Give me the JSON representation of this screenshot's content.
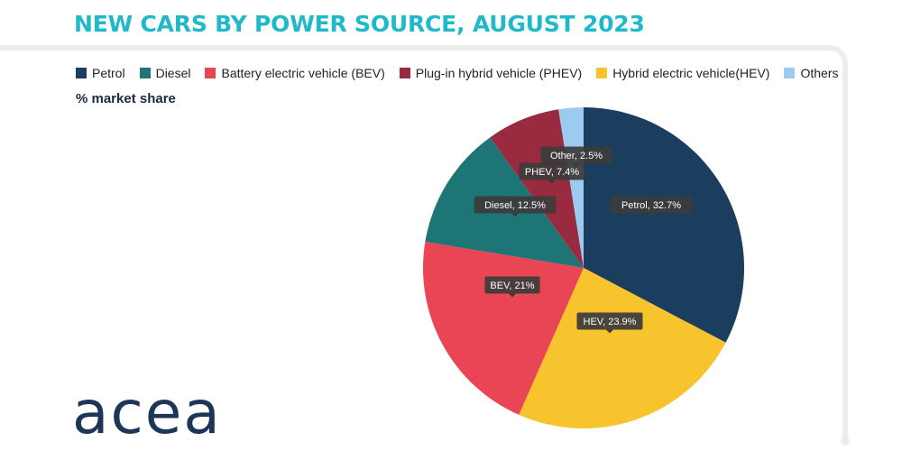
{
  "title": "NEW CARS BY POWER SOURCE, AUGUST 2023",
  "subtitle": "% market share",
  "logo_text": "acea",
  "legend": [
    {
      "label": "Petrol",
      "color": "#1b3d5e"
    },
    {
      "label": "Diesel",
      "color": "#1e7575"
    },
    {
      "label": "Battery electric vehicle (BEV)",
      "color": "#ea4555"
    },
    {
      "label": "Plug-in hybrid vehicle (PHEV)",
      "color": "#9a2a40"
    },
    {
      "label": "Hybrid electric vehicle(HEV)",
      "color": "#f8c42d"
    },
    {
      "label": "Others",
      "color": "#9ccbf0"
    }
  ],
  "chart_data": {
    "type": "pie",
    "title": "NEW CARS BY POWER SOURCE, AUGUST 2023",
    "subtitle": "% market share",
    "slices": [
      {
        "name": "Petrol",
        "value": 32.7,
        "label": "Petrol, 32.7%",
        "color": "#1b3d5e"
      },
      {
        "name": "HEV",
        "value": 23.9,
        "label": "HEV, 23.9%",
        "color": "#f8c42d"
      },
      {
        "name": "BEV",
        "value": 21,
        "label": "BEV, 21%",
        "color": "#ea4555"
      },
      {
        "name": "Diesel",
        "value": 12.5,
        "label": "Diesel, 12.5%",
        "color": "#1e7575"
      },
      {
        "name": "PHEV",
        "value": 7.4,
        "label": "PHEV, 7.4%",
        "color": "#9a2a40"
      },
      {
        "name": "Other",
        "value": 2.5,
        "label": "Other, 2.5%",
        "color": "#9ccbf0"
      }
    ],
    "legend_position": "top",
    "label_style": "dark tooltip boxes"
  }
}
